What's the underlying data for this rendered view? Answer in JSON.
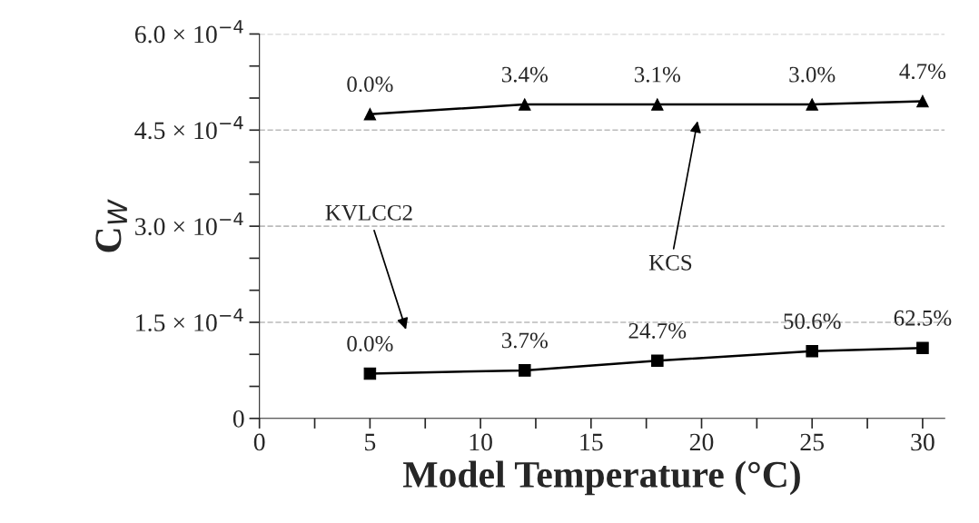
{
  "chart_data": {
    "type": "line",
    "xlabel": "Model Temperature (°C)",
    "ylabel": "C$_{W}$",
    "xlim": [
      0,
      31
    ],
    "xticks": [
      0,
      {
        "value": 2.5,
        "label": null
      },
      5,
      {
        "value": 7.5,
        "label": null
      },
      10,
      {
        "value": 12.5,
        "label": null
      },
      15,
      {
        "value": 17.5,
        "label": null
      },
      20,
      {
        "value": 22.5,
        "label": null
      },
      25,
      {
        "value": 27.5,
        "label": null
      },
      30
    ],
    "ylim": [
      0,
      0.0006
    ],
    "yticks": [
      {
        "value": 0,
        "label": "0"
      },
      {
        "value": 5e-05,
        "label": null
      },
      {
        "value": 0.0001,
        "label": null
      },
      {
        "value": 0.00015,
        "label": "1.5 × 10$^{−4}$"
      },
      {
        "value": 0.0002,
        "label": null
      },
      {
        "value": 0.00025,
        "label": null
      },
      {
        "value": 0.0003,
        "label": "3.0 × 10$^{−4}$"
      },
      {
        "value": 0.00035,
        "label": null
      },
      {
        "value": 0.0004,
        "label": null
      },
      {
        "value": 0.00045,
        "label": "4.5 × 10$^{−4}$"
      },
      {
        "value": 0.0005,
        "label": null
      },
      {
        "value": 0.00055,
        "label": null
      },
      {
        "value": 0.0006,
        "label": "6.0 × 10$^{−4}$"
      }
    ],
    "grid": "y",
    "line_style": "solid",
    "series": [
      {
        "color": "#000000",
        "marker": "triangle",
        "x": [
          5,
          12,
          18,
          25,
          30
        ],
        "values": [
          0.000475,
          0.00049,
          0.00049,
          0.00049,
          0.000495
        ]
      },
      {
        "color": "#000000",
        "marker": "square",
        "x": [
          5,
          12,
          18,
          25,
          30
        ],
        "values": [
          7e-05,
          7.5e-05,
          9e-05,
          0.000105,
          0.00011
        ]
      }
    ],
    "annotations": [
      "KCS",
      "KVLCC2",
      {
        "text": "0.0%",
        "x": 5,
        "y": 0.000475
      },
      {
        "text": "3.4%",
        "x": 12,
        "y": 0.00049
      },
      {
        "text": "3.1%",
        "x": 18,
        "y": 0.00049
      },
      {
        "text": "3.0%",
        "x": 25,
        "y": 0.00049
      },
      {
        "text": "4.7%",
        "x": 30,
        "y": 0.000495
      },
      {
        "text": "0.0%",
        "x": 5,
        "y": 7e-05
      },
      {
        "text": "3.7%",
        "x": 12,
        "y": 7.5e-05
      },
      {
        "text": "24.7%",
        "x": 18,
        "y": 9e-05
      },
      {
        "text": "50.6%",
        "x": 25,
        "y": 0.000105
      },
      {
        "text": "62.5%",
        "x": 30,
        "y": 0.00011
      }
    ]
  }
}
